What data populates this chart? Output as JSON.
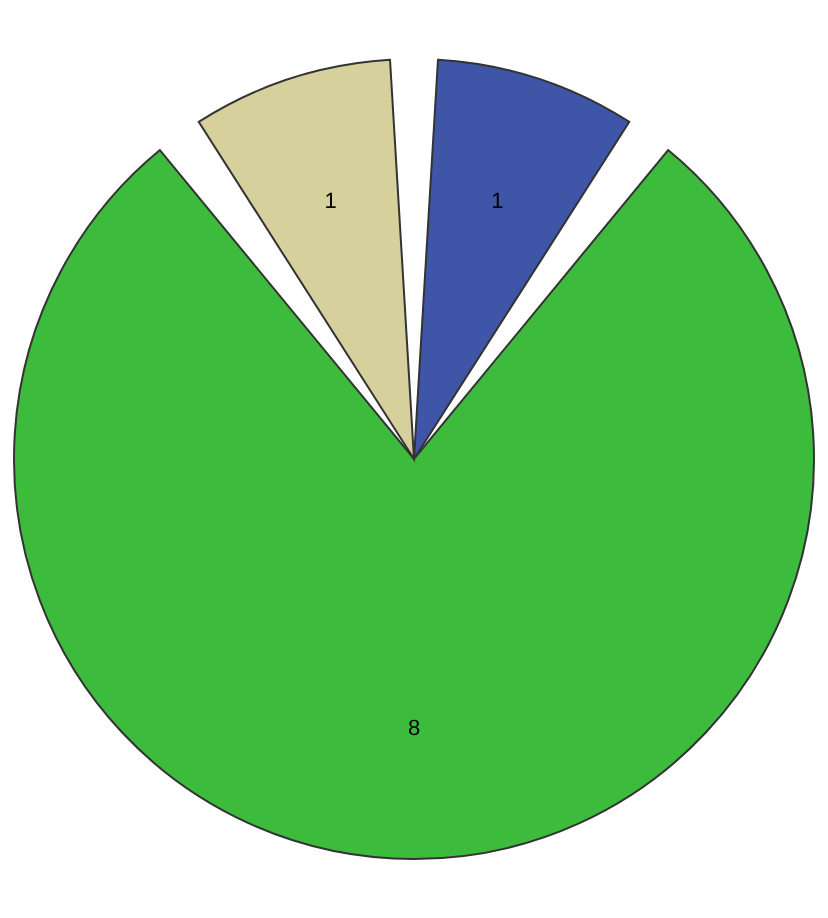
{
  "chart_data": {
    "type": "pie",
    "categories": [
      null,
      null,
      null
    ],
    "values": [
      1,
      8,
      1
    ],
    "colors": [
      "#3f56a8",
      "#3dbb3d",
      "#d6d09c"
    ],
    "data_labels": true,
    "legend": false
  }
}
